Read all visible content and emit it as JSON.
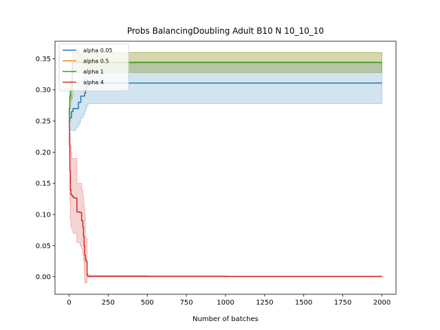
{
  "chart_data": {
    "type": "line",
    "title": "Probs BalancingDoubling Adult B10 N 10_10_10",
    "xlabel": "Number of batches",
    "ylabel": "",
    "xlim": [
      -90,
      2090
    ],
    "ylim": [
      -0.028,
      0.378
    ],
    "xticks": [
      0,
      250,
      500,
      750,
      1000,
      1250,
      1500,
      1750,
      2000
    ],
    "xtick_labels": [
      "0",
      "250",
      "500",
      "750",
      "1000",
      "1250",
      "1500",
      "1750",
      "2000"
    ],
    "yticks": [
      0.0,
      0.05,
      0.1,
      0.15,
      0.2,
      0.25,
      0.3,
      0.35
    ],
    "ytick_labels": [
      "0.00",
      "0.05",
      "0.10",
      "0.15",
      "0.20",
      "0.25",
      "0.30",
      "0.35"
    ],
    "grid": false,
    "legend_position": "top-left",
    "series": [
      {
        "name": "alpha 0.05",
        "color": "#1f77b4",
        "x": [
          0,
          2,
          5,
          15,
          25,
          35,
          45,
          60,
          70,
          75,
          90,
          100,
          105,
          110,
          115,
          120,
          125,
          130,
          2000
        ],
        "y": [
          0.25,
          0.25,
          0.255,
          0.265,
          0.27,
          0.27,
          0.27,
          0.28,
          0.28,
          0.29,
          0.29,
          0.295,
          0.3,
          0.305,
          0.308,
          0.31,
          0.311,
          0.311,
          0.311
        ],
        "band_upper": [
          0.25,
          0.27,
          0.275,
          0.29,
          0.3,
          0.3,
          0.3,
          0.31,
          0.31,
          0.315,
          0.32,
          0.325,
          0.33,
          0.335,
          0.34,
          0.345,
          0.345,
          0.345,
          0.345
        ],
        "band_lower": [
          0.25,
          0.24,
          0.235,
          0.235,
          0.235,
          0.235,
          0.24,
          0.245,
          0.25,
          0.255,
          0.26,
          0.265,
          0.268,
          0.272,
          0.275,
          0.277,
          0.278,
          0.278,
          0.278
        ]
      },
      {
        "name": "alpha 0.5",
        "color": "#ff7f0e",
        "x": [
          0,
          2,
          5,
          10,
          20,
          2000
        ],
        "y": [
          0.25,
          0.27,
          0.29,
          0.3,
          0.344,
          0.344
        ],
        "band_upper": [
          0.25,
          0.28,
          0.3,
          0.315,
          0.36,
          0.36
        ],
        "band_lower": [
          0.25,
          0.26,
          0.28,
          0.285,
          0.328,
          0.328
        ]
      },
      {
        "name": "alpha 1",
        "color": "#2ca02c",
        "x": [
          0,
          2,
          5,
          10,
          20,
          2000
        ],
        "y": [
          0.25,
          0.27,
          0.29,
          0.3,
          0.344,
          0.344
        ],
        "band_upper": [
          0.25,
          0.28,
          0.3,
          0.315,
          0.36,
          0.36
        ],
        "band_lower": [
          0.25,
          0.26,
          0.28,
          0.285,
          0.328,
          0.328
        ]
      },
      {
        "name": "alpha 4",
        "color": "#d62728",
        "x": [
          0,
          2,
          3,
          5,
          8,
          12,
          18,
          25,
          30,
          40,
          50,
          60,
          70,
          80,
          88,
          92,
          96,
          100,
          104,
          108,
          115,
          120,
          130,
          150,
          200,
          300,
          500,
          1000,
          2000
        ],
        "y": [
          0.25,
          0.24,
          0.21,
          0.17,
          0.14,
          0.132,
          0.13,
          0.128,
          0.127,
          0.126,
          0.104,
          0.104,
          0.103,
          0.09,
          0.08,
          0.065,
          0.05,
          0.035,
          0.028,
          0.025,
          0.002,
          0.001,
          0.001,
          0.001,
          0.001,
          0.001,
          0.001,
          0.0005,
          0.0003
        ],
        "band_upper": [
          0.25,
          0.25,
          0.24,
          0.23,
          0.21,
          0.2,
          0.19,
          0.19,
          0.19,
          0.19,
          0.15,
          0.15,
          0.15,
          0.14,
          0.13,
          0.12,
          0.11,
          0.1,
          0.065,
          0.062,
          0.005,
          0.003,
          0.002,
          0.002,
          0.002,
          0.002,
          0.001,
          0.001,
          0.001
        ],
        "band_lower": [
          0.25,
          0.22,
          0.18,
          0.12,
          0.09,
          0.08,
          0.075,
          0.07,
          0.07,
          0.07,
          0.055,
          0.055,
          0.05,
          0.045,
          0.035,
          0.025,
          0.005,
          -0.01,
          -0.01,
          -0.01,
          -0.001,
          -0.001,
          -0.001,
          0.0,
          0.0,
          0.0,
          0.0,
          0.0,
          0.0
        ]
      }
    ]
  }
}
